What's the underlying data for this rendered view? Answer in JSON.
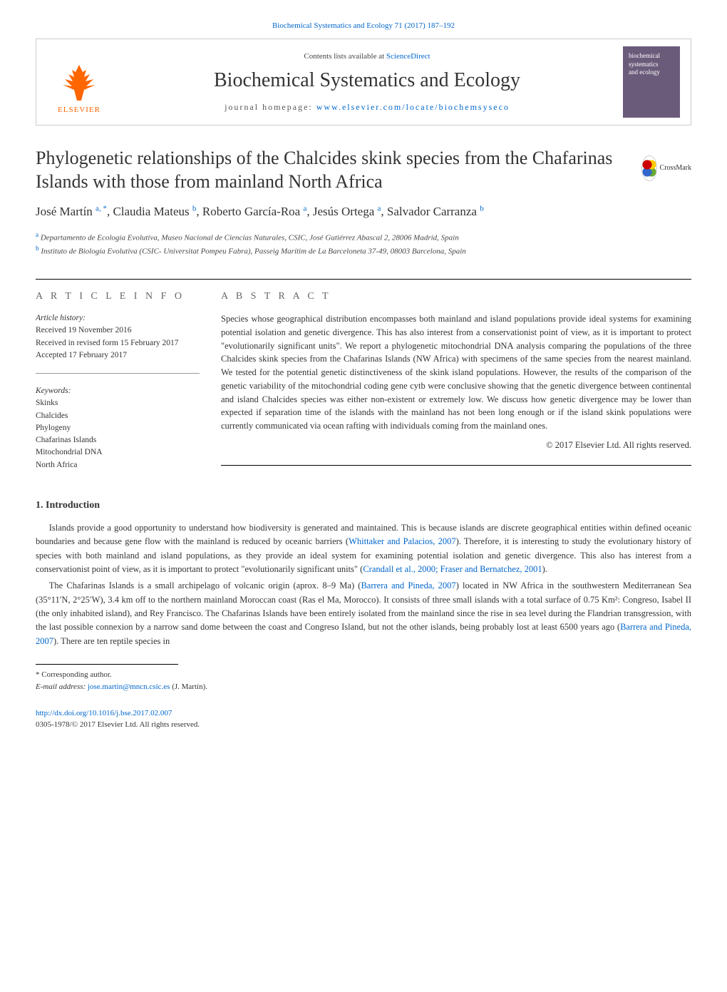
{
  "links": {
    "journal_range": "Biochemical Systematics and Ecology 71 (2017) 187–192",
    "contents_prefix": "Contents lists available at ",
    "contents_link": "ScienceDirect",
    "homepage_prefix": "journal homepage: ",
    "homepage_url": "www.elsevier.com/locate/biochemsyseco"
  },
  "publisher": {
    "name": "ELSEVIER",
    "logo_color": "#ff6600"
  },
  "journal": {
    "title": "Biochemical Systematics and Ecology",
    "cover_text_1": "biochemical",
    "cover_text_2": "systematics",
    "cover_text_3": "and ecology",
    "cover_bg": "#6b5b7b"
  },
  "crossmark": {
    "label": "CrossMark"
  },
  "article": {
    "title": "Phylogenetic relationships of the Chalcides skink species from the Chafarinas Islands with those from mainland North Africa",
    "authors_html": "José Martín <sup>a, *</sup>, Claudia Mateus <sup>b</sup>, Roberto García-Roa <sup>a</sup>, Jesús Ortega <sup>a</sup>, Salvador Carranza <sup>b</sup>",
    "affiliations": [
      {
        "sup": "a",
        "text": "Departamento de Ecología Evolutiva, Museo Nacional de Ciencias Naturales, CSIC, José Gutiérrez Abascal 2, 28006 Madrid, Spain"
      },
      {
        "sup": "b",
        "text": "Instituto de Biología Evolutiva (CSIC- Universitat Pompeu Fabra), Passeig Marítim de La Barceloneta 37-49, 08003 Barcelona, Spain"
      }
    ]
  },
  "article_info": {
    "heading": "A R T I C L E   I N F O",
    "history_label": "Article history:",
    "received": "Received 19 November 2016",
    "revised": "Received in revised form 15 February 2017",
    "accepted": "Accepted 17 February 2017",
    "keywords_label": "Keywords:",
    "keywords": [
      "Skinks",
      "Chalcides",
      "Phylogeny",
      "Chafarinas Islands",
      "Mitochondrial DNA",
      "North Africa"
    ]
  },
  "abstract": {
    "heading": "A B S T R A C T",
    "text": "Species whose geographical distribution encompasses both mainland and island populations provide ideal systems for examining potential isolation and genetic divergence. This has also interest from a conservationist point of view, as it is important to protect \"evolutionarily significant units\". We report a phylogenetic mitochondrial DNA analysis comparing the populations of the three Chalcides skink species from the Chafarinas Islands (NW Africa) with specimens of the same species from the nearest mainland. We tested for the potential genetic distinctiveness of the skink island populations. However, the results of the comparison of the genetic variability of the mitochondrial coding gene cytb were conclusive showing that the genetic divergence between continental and island Chalcides species was either non-existent or extremely low. We discuss how genetic divergence may be lower than expected if separation time of the islands with the mainland has not been long enough or if the island skink populations were currently communicated via ocean rafting with individuals coming from the mainland ones.",
    "copyright": "© 2017 Elsevier Ltd. All rights reserved."
  },
  "body": {
    "section_heading": "1. Introduction",
    "para1_parts": [
      "Islands provide a good opportunity to understand how biodiversity is generated and maintained. This is because islands are discrete geographical entities within defined oceanic boundaries and because gene flow with the mainland is reduced by oceanic barriers (",
      "Whittaker and Palacios, 2007",
      "). Therefore, it is interesting to study the evolutionary history of species with both mainland and island populations, as they provide an ideal system for examining potential isolation and genetic divergence. This also has interest from a conservationist point of view, as it is important to protect \"evolutionarily significant units\" (",
      "Crandall et al., 2000; Fraser and Bernatchez, 2001",
      ")."
    ],
    "para2_parts": [
      "The Chafarinas Islands is a small archipelago of volcanic origin (aprox. 8–9 Ma) (",
      "Barrera and Pineda, 2007",
      ") located in NW Africa in the southwestern Mediterranean Sea (35°11′N, 2°25′W), 3.4 km off to the northern mainland Moroccan coast (Ras el Ma, Morocco). It consists of three small islands with a total surface of 0.75 Km²: Congreso, Isabel II (the only inhabited island), and Rey Francisco. The Chafarinas Islands have been entirely isolated from the mainland since the rise in sea level during the Flandrian transgression, with the last possible connexion by a narrow sand dome between the coast and Congreso Island, but not the other islands, being probably lost at least 6500 years ago (",
      "Barrera and Pineda, 2007",
      "). There are ten reptile species in"
    ]
  },
  "footer": {
    "corresponding_marker": "* Corresponding author.",
    "email_label": "E-mail address: ",
    "email": "jose.martin@mncn.csic.es",
    "email_suffix": " (J. Martín).",
    "doi_url": "http://dx.doi.org/10.1016/j.bse.2017.02.007",
    "issn_line": "0305-1978/© 2017 Elsevier Ltd. All rights reserved."
  },
  "colors": {
    "link": "#0066cc",
    "elsevier_orange": "#ff6600",
    "text": "#333333",
    "muted": "#666666"
  }
}
